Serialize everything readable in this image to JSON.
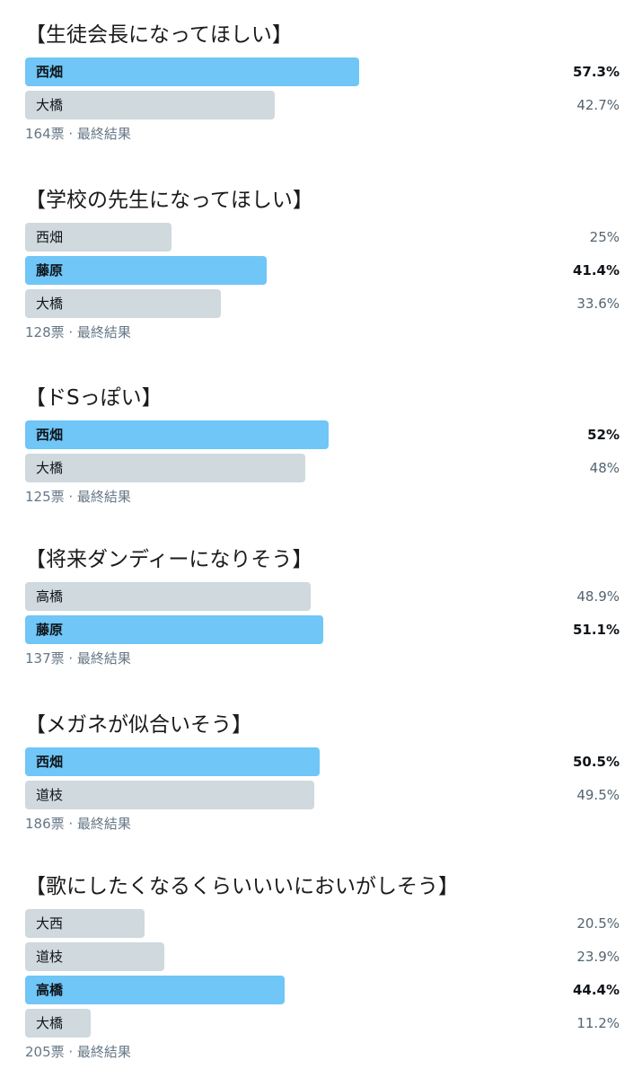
{
  "polls": [
    {
      "title": "【生徒会長になってほしい】",
      "options": [
        {
          "label": "西畑",
          "percent": "57.3%",
          "value": 57.3,
          "winner": true
        },
        {
          "label": "大橋",
          "percent": "42.7%",
          "value": 42.7,
          "winner": false
        }
      ],
      "footer": "164票 · 最終結果"
    },
    {
      "title": "【学校の先生になってほしい】",
      "options": [
        {
          "label": "西畑",
          "percent": "25%",
          "value": 25,
          "winner": false
        },
        {
          "label": "藤原",
          "percent": "41.4%",
          "value": 41.4,
          "winner": true
        },
        {
          "label": "大橋",
          "percent": "33.6%",
          "value": 33.6,
          "winner": false
        }
      ],
      "footer": "128票 · 最終結果"
    },
    {
      "title": "【ドSっぽい】",
      "options": [
        {
          "label": "西畑",
          "percent": "52%",
          "value": 52,
          "winner": true
        },
        {
          "label": "大橋",
          "percent": "48%",
          "value": 48,
          "winner": false
        }
      ],
      "footer": "125票 · 最終結果"
    },
    {
      "title": "【将来ダンディーになりそう】",
      "options": [
        {
          "label": "高橋",
          "percent": "48.9%",
          "value": 48.9,
          "winner": false
        },
        {
          "label": "藤原",
          "percent": "51.1%",
          "value": 51.1,
          "winner": true
        }
      ],
      "footer": "137票 · 最終結果"
    },
    {
      "title": "【メガネが似合いそう】",
      "options": [
        {
          "label": "西畑",
          "percent": "50.5%",
          "value": 50.5,
          "winner": true
        },
        {
          "label": "道枝",
          "percent": "49.5%",
          "value": 49.5,
          "winner": false
        }
      ],
      "footer": "186票 · 最終結果"
    },
    {
      "title": "【歌にしたくなるくらいいいにおいがしそう】",
      "options": [
        {
          "label": "大西",
          "percent": "20.5%",
          "value": 20.5,
          "winner": false
        },
        {
          "label": "道枝",
          "percent": "23.9%",
          "value": 23.9,
          "winner": false
        },
        {
          "label": "高橋",
          "percent": "44.4%",
          "value": 44.4,
          "winner": true
        },
        {
          "label": "大橋",
          "percent": "11.2%",
          "value": 11.2,
          "winner": false
        }
      ],
      "footer": "205票 · 最終結果"
    }
  ],
  "colors": {
    "winner_bar": "#6fc6f7",
    "other_bar": "#cfd9de",
    "footer_text": "#657786"
  }
}
